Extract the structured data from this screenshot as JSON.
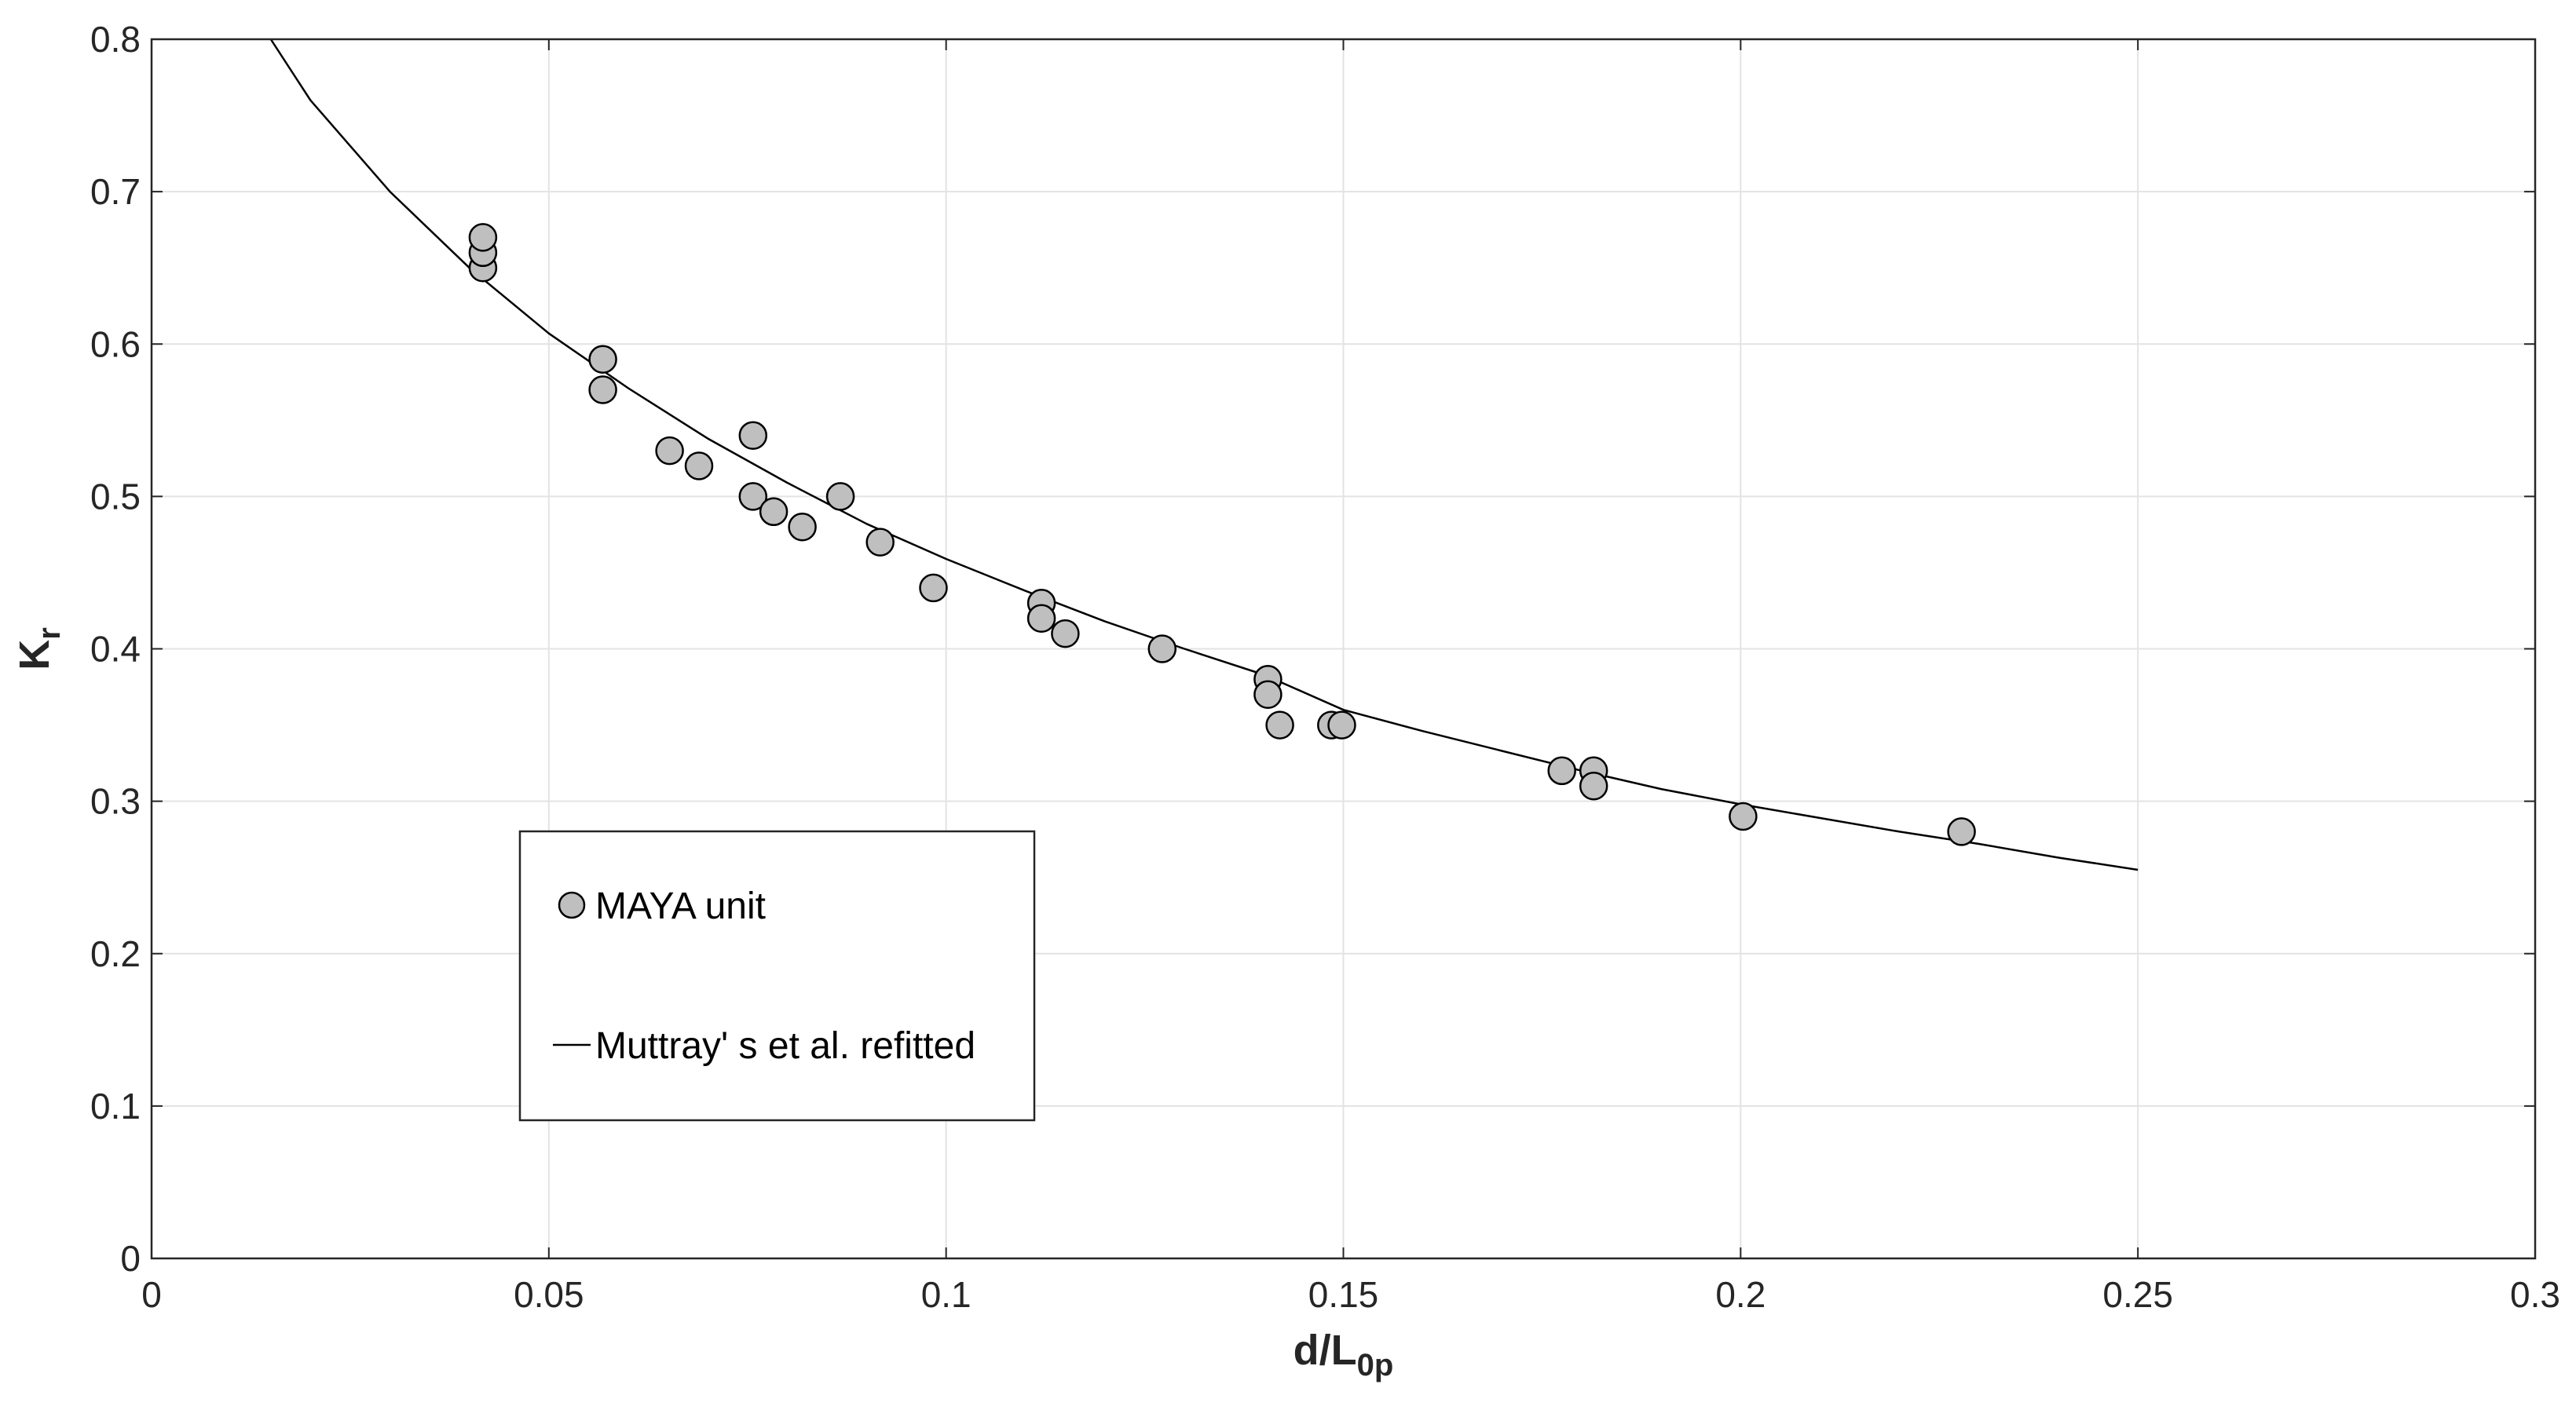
{
  "chart_data": {
    "type": "scatter",
    "title": "",
    "xlabel": "d/L",
    "xlabel_subscript": "0p",
    "ylabel": "K",
    "ylabel_subscript": "r",
    "xlim": [
      0,
      0.3
    ],
    "ylim": [
      0,
      0.8
    ],
    "grid": true,
    "x_ticks": [
      0,
      0.05,
      0.1,
      0.15,
      0.2,
      0.25,
      0.3
    ],
    "x_tick_labels": [
      "0",
      "0.05",
      "0.1",
      "0.15",
      "0.2",
      "0.25",
      "0.3"
    ],
    "y_ticks": [
      0,
      0.1,
      0.2,
      0.3,
      0.4,
      0.5,
      0.6,
      0.7,
      0.8
    ],
    "y_tick_labels": [
      "0",
      "0.1",
      "0.2",
      "0.3",
      "0.4",
      "0.5",
      "0.6",
      "0.7",
      "0.8"
    ],
    "legend_position": "lower-left",
    "series": [
      {
        "name": "MAYA unit",
        "kind": "markers",
        "marker_color": "#bfbfbf",
        "edge_color": "#000000",
        "points": [
          [
            0.0417,
            0.65
          ],
          [
            0.0417,
            0.66
          ],
          [
            0.0417,
            0.67
          ],
          [
            0.0568,
            0.59
          ],
          [
            0.0568,
            0.57
          ],
          [
            0.0652,
            0.53
          ],
          [
            0.0689,
            0.52
          ],
          [
            0.0757,
            0.54
          ],
          [
            0.0757,
            0.5
          ],
          [
            0.0783,
            0.49
          ],
          [
            0.0819,
            0.48
          ],
          [
            0.0867,
            0.5
          ],
          [
            0.0917,
            0.47
          ],
          [
            0.0984,
            0.44
          ],
          [
            0.112,
            0.43
          ],
          [
            0.112,
            0.42
          ],
          [
            0.115,
            0.41
          ],
          [
            0.1272,
            0.4
          ],
          [
            0.1405,
            0.38
          ],
          [
            0.1405,
            0.37
          ],
          [
            0.142,
            0.35
          ],
          [
            0.1485,
            0.35
          ],
          [
            0.1498,
            0.35
          ],
          [
            0.1775,
            0.32
          ],
          [
            0.1815,
            0.32
          ],
          [
            0.1815,
            0.31
          ],
          [
            0.2003,
            0.29
          ],
          [
            0.2278,
            0.28
          ]
        ]
      },
      {
        "name": "Muttray' s et al. refitted",
        "kind": "line",
        "line_color": "#000000",
        "points": [
          [
            0.015,
            0.8
          ],
          [
            0.02,
            0.76
          ],
          [
            0.03,
            0.7
          ],
          [
            0.04,
            0.65
          ],
          [
            0.05,
            0.607
          ],
          [
            0.06,
            0.571
          ],
          [
            0.07,
            0.538
          ],
          [
            0.08,
            0.509
          ],
          [
            0.09,
            0.482
          ],
          [
            0.1,
            0.459
          ],
          [
            0.11,
            0.438
          ],
          [
            0.12,
            0.418
          ],
          [
            0.13,
            0.4
          ],
          [
            0.14,
            0.383
          ],
          [
            0.15,
            0.36
          ],
          [
            0.16,
            0.346
          ],
          [
            0.17,
            0.333
          ],
          [
            0.18,
            0.32
          ],
          [
            0.19,
            0.308
          ],
          [
            0.2,
            0.298
          ],
          [
            0.21,
            0.289
          ],
          [
            0.22,
            0.28
          ],
          [
            0.23,
            0.272
          ],
          [
            0.24,
            0.263
          ],
          [
            0.25,
            0.255
          ]
        ]
      }
    ]
  }
}
